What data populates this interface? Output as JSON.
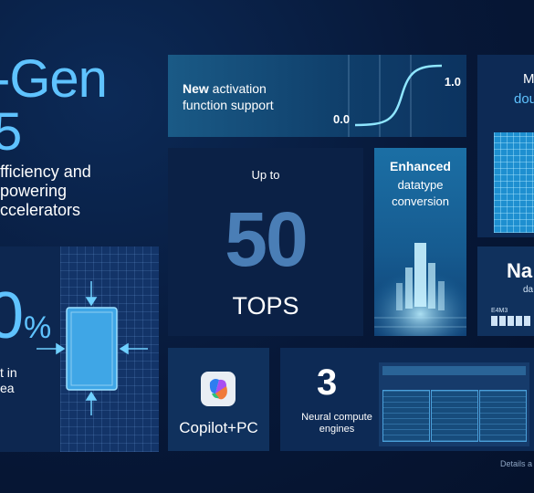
{
  "hero": {
    "title_line1": "-Gen",
    "title_line2": "5",
    "subtitle_line1": "fficiency and",
    "subtitle_line2": "powering",
    "subtitle_line3": "ccelerators"
  },
  "die_tile": {
    "percent_digit": "0",
    "percent_sign": "%",
    "text_line1": "t in",
    "text_line2": "ea"
  },
  "activation": {
    "bold": "New",
    "rest_line1": " activation",
    "line2": "function support",
    "value_high": "1.0",
    "value_low": "0.0"
  },
  "right_top": {
    "line1": "M",
    "line2": "dou"
  },
  "tops": {
    "prefix": "Up to",
    "number": "50",
    "unit": "TOPS"
  },
  "enhanced": {
    "bold": "Enhanced",
    "line2": "datatype",
    "line3": "conversion"
  },
  "right_mid": {
    "title": "Na",
    "sub": "da",
    "format": "E4M3"
  },
  "copilot": {
    "label": "Copilot+PC",
    "icon": "copilot-icon"
  },
  "engines": {
    "number": "3",
    "line1": "Neural compute",
    "line2": "engines"
  },
  "footer": {
    "details": "Details a"
  },
  "colors": {
    "accent": "#5fc3ff",
    "background": "#081a3a",
    "tile": "#0d2a55"
  }
}
